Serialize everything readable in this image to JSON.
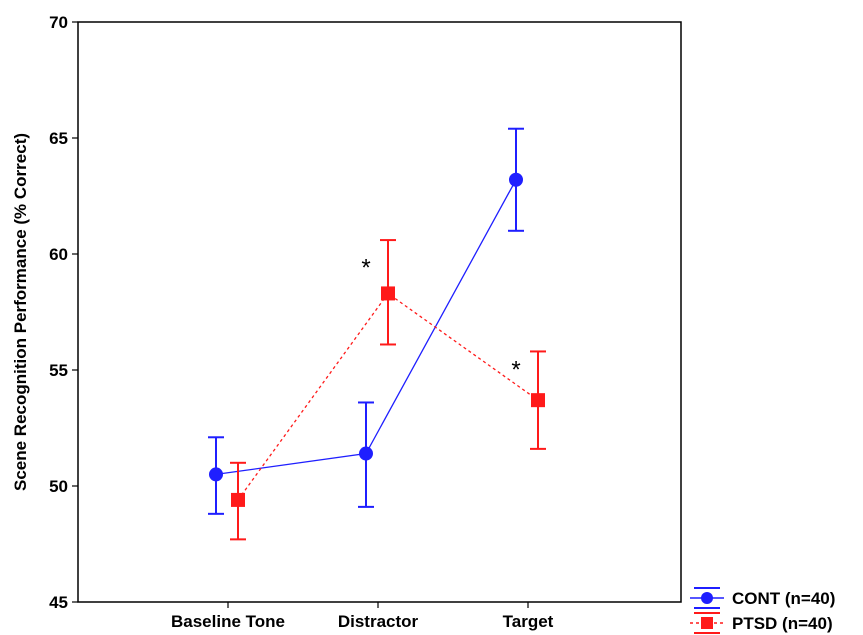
{
  "chart_data": {
    "type": "line",
    "title": "",
    "xlabel": "",
    "ylabel": "Scene Recognition Performance (% Correct)",
    "categories": [
      "Baseline Tone",
      "Distractor",
      "Target"
    ],
    "ylim": [
      45,
      70
    ],
    "yticks": [
      45,
      50,
      55,
      60,
      65,
      70
    ],
    "grid": false,
    "legend_position": "bottom-right-outside",
    "series": [
      {
        "name": "CONT (n=40)",
        "color": "#1f1fff",
        "marker": "circle",
        "line_style": "solid",
        "values": [
          50.5,
          51.4,
          63.2
        ],
        "err_low": [
          48.8,
          49.1,
          61.0
        ],
        "err_high": [
          52.1,
          53.6,
          65.4
        ]
      },
      {
        "name": "PTSD (n=40)",
        "color": "#ff1a1a",
        "marker": "square",
        "line_style": "dotted",
        "values": [
          49.4,
          58.3,
          53.7
        ],
        "err_low": [
          47.7,
          56.1,
          51.6
        ],
        "err_high": [
          51.0,
          60.6,
          55.8
        ]
      }
    ],
    "annotations": [
      {
        "text": "*",
        "category": "Distractor",
        "y": 59.6
      },
      {
        "text": "*",
        "category": "Target",
        "y": 55.2
      }
    ]
  }
}
